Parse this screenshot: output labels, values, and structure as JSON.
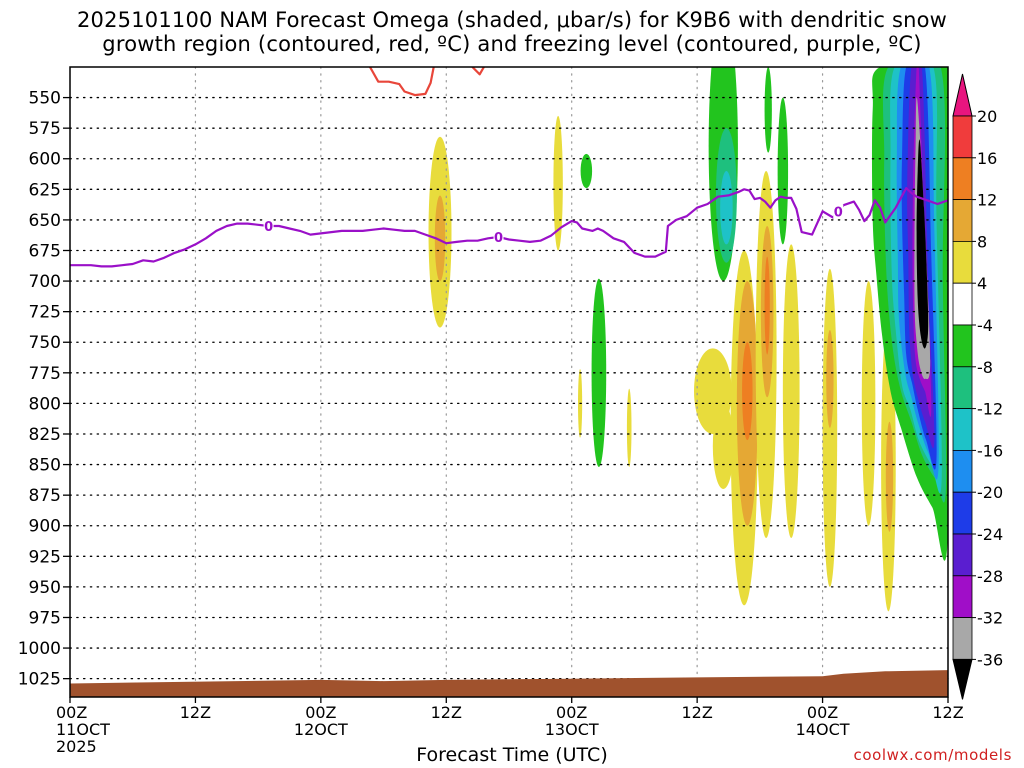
{
  "title_line1": "2025101100 NAM Forecast Omega (shaded, μbar/s) for K9B6 with dendritic snow",
  "title_line2": "growth region (contoured, red, ºC) and freezing level (contoured, purple, ºC)",
  "credit": "coolwx.com/models",
  "colors": {
    "dgz_contour": "#e8463a",
    "freezing_level": "#9a10c8",
    "ground": "#a0522d"
  },
  "chart_data": {
    "type": "heatmap",
    "xlabel": "Forecast Time (UTC)",
    "ylabel": "",
    "xlim": [
      0,
      84
    ],
    "ylim": [
      525,
      1040
    ],
    "y_axis": "pressure_reversed",
    "grid": true,
    "y_ticks": [
      550,
      575,
      600,
      625,
      650,
      675,
      700,
      725,
      750,
      775,
      800,
      825,
      850,
      875,
      900,
      925,
      950,
      975,
      1000,
      1025
    ],
    "x_ticks": [
      {
        "x": 0,
        "line1": "00Z",
        "line2": "11OCT",
        "line3": "2025"
      },
      {
        "x": 12,
        "line1": "12Z",
        "line2": "",
        "line3": ""
      },
      {
        "x": 24,
        "line1": "00Z",
        "line2": "12OCT",
        "line3": ""
      },
      {
        "x": 36,
        "line1": "12Z",
        "line2": "",
        "line3": ""
      },
      {
        "x": 48,
        "line1": "00Z",
        "line2": "13OCT",
        "line3": ""
      },
      {
        "x": 60,
        "line1": "12Z",
        "line2": "",
        "line3": ""
      },
      {
        "x": 72,
        "line1": "00Z",
        "line2": "14OCT",
        "line3": ""
      },
      {
        "x": 84,
        "line1": "12Z",
        "line2": "",
        "line3": ""
      }
    ],
    "colorbar": {
      "labels": [
        "20",
        "16",
        "12",
        "8",
        "4",
        "-4",
        "-8",
        "-12",
        "-16",
        "-20",
        "-24",
        "-28",
        "-32",
        "-36"
      ],
      "bins": [
        {
          "range": [
            20,
            99
          ],
          "color": "#e8157f"
        },
        {
          "range": [
            16,
            20
          ],
          "color": "#f03c3c"
        },
        {
          "range": [
            12,
            16
          ],
          "color": "#ee7f22"
        },
        {
          "range": [
            8,
            12
          ],
          "color": "#e5a834"
        },
        {
          "range": [
            4,
            8
          ],
          "color": "#e8dc3c"
        },
        {
          "range": [
            -4,
            4
          ],
          "color": "#ffffff"
        },
        {
          "range": [
            -8,
            -4
          ],
          "color": "#22c41e"
        },
        {
          "range": [
            -12,
            -8
          ],
          "color": "#1ec07e"
        },
        {
          "range": [
            -16,
            -12
          ],
          "color": "#1ec2c8"
        },
        {
          "range": [
            -20,
            -16
          ],
          "color": "#1e8ef0"
        },
        {
          "range": [
            -24,
            -20
          ],
          "color": "#1e3ce8"
        },
        {
          "range": [
            -28,
            -24
          ],
          "color": "#5a1ed0"
        },
        {
          "range": [
            -32,
            -28
          ],
          "color": "#a00ec8"
        },
        {
          "range": [
            -36,
            -32
          ],
          "color": "#a8a8a8"
        },
        {
          "range": [
            -99,
            -36
          ],
          "color": "#000000"
        }
      ]
    },
    "freezing_level": {
      "label": "0",
      "label_hours": [
        19,
        41,
        73.5
      ],
      "points": [
        [
          0,
          687
        ],
        [
          2,
          687
        ],
        [
          3,
          688
        ],
        [
          4,
          688
        ],
        [
          5,
          687
        ],
        [
          6,
          686
        ],
        [
          7,
          683
        ],
        [
          8,
          684
        ],
        [
          9,
          681
        ],
        [
          10,
          677
        ],
        [
          11,
          674
        ],
        [
          12,
          670
        ],
        [
          13,
          665
        ],
        [
          14,
          659
        ],
        [
          15,
          655
        ],
        [
          16,
          653
        ],
        [
          17,
          653
        ],
        [
          18,
          654
        ],
        [
          19,
          655
        ],
        [
          20,
          655
        ],
        [
          21,
          657
        ],
        [
          22,
          659
        ],
        [
          23,
          662
        ],
        [
          24,
          661
        ],
        [
          25,
          660
        ],
        [
          26,
          659
        ],
        [
          27,
          659
        ],
        [
          28,
          659
        ],
        [
          29,
          658
        ],
        [
          30,
          657
        ],
        [
          31,
          658
        ],
        [
          32,
          659
        ],
        [
          33,
          659
        ],
        [
          34,
          662
        ],
        [
          35,
          665
        ],
        [
          36,
          669
        ],
        [
          37,
          668
        ],
        [
          38,
          667
        ],
        [
          39,
          667
        ],
        [
          40,
          665
        ],
        [
          41,
          664
        ],
        [
          42,
          666
        ],
        [
          43,
          667
        ],
        [
          44,
          668
        ],
        [
          45,
          667
        ],
        [
          46,
          663
        ],
        [
          47,
          656
        ],
        [
          48,
          651
        ],
        [
          48.5,
          652
        ],
        [
          49,
          657
        ],
        [
          50,
          659
        ],
        [
          50.5,
          657
        ],
        [
          51,
          659
        ],
        [
          52,
          665
        ],
        [
          53,
          668
        ],
        [
          54,
          677
        ],
        [
          55,
          680
        ],
        [
          56,
          680
        ],
        [
          57,
          676
        ],
        [
          57.2,
          655
        ],
        [
          58,
          650
        ],
        [
          59,
          647
        ],
        [
          60,
          640
        ],
        [
          61,
          637
        ],
        [
          62,
          631
        ],
        [
          63,
          630
        ],
        [
          64,
          627
        ],
        [
          64.5,
          625
        ],
        [
          65,
          626
        ],
        [
          65.5,
          633
        ],
        [
          66,
          632
        ],
        [
          66.5,
          635
        ],
        [
          67,
          640
        ],
        [
          67.5,
          634
        ],
        [
          68,
          631
        ],
        [
          68.5,
          632
        ],
        [
          69,
          632
        ],
        [
          69.5,
          641
        ],
        [
          70,
          660
        ],
        [
          71,
          662
        ],
        [
          72,
          643
        ],
        [
          73,
          648
        ],
        [
          74,
          638
        ],
        [
          75,
          635
        ],
        [
          75.5,
          642
        ],
        [
          76,
          651
        ],
        [
          76.5,
          646
        ],
        [
          77,
          634
        ],
        [
          77.5,
          640
        ],
        [
          78,
          652
        ],
        [
          79,
          640
        ],
        [
          80,
          624
        ],
        [
          80.5,
          628
        ],
        [
          81,
          631
        ],
        [
          82,
          634
        ],
        [
          83,
          637
        ],
        [
          84,
          634
        ]
      ]
    },
    "dgz_contours": [
      {
        "points": [
          [
            28.7,
            525
          ],
          [
            29.5,
            537
          ],
          [
            30.5,
            537
          ],
          [
            31.5,
            539
          ],
          [
            32,
            545
          ],
          [
            33,
            548
          ],
          [
            34,
            547
          ],
          [
            34.5,
            538
          ],
          [
            34.8,
            525
          ]
        ]
      },
      {
        "points": [
          [
            38.5,
            525
          ],
          [
            39.2,
            531
          ],
          [
            39.6,
            525
          ]
        ]
      }
    ],
    "ground_pressure": [
      [
        0,
        1029
      ],
      [
        16,
        1027
      ],
      [
        24,
        1026
      ],
      [
        30,
        1027
      ],
      [
        36,
        1026
      ],
      [
        48,
        1025
      ],
      [
        60,
        1024
      ],
      [
        72,
        1023
      ],
      [
        74,
        1021
      ],
      [
        78,
        1019
      ],
      [
        84,
        1018
      ]
    ],
    "omega_cells": [
      {
        "cx": 35.4,
        "cy": 660,
        "rx": 1.1,
        "ry": 78,
        "v": 5
      },
      {
        "cx": 35.4,
        "cy": 665,
        "rx": 0.5,
        "ry": 35,
        "v": 9
      },
      {
        "cx": 46.7,
        "cy": 620,
        "rx": 0.45,
        "ry": 55,
        "v": 5
      },
      {
        "cx": 49.4,
        "cy": 610,
        "rx": 0.55,
        "ry": 14,
        "v": -6
      },
      {
        "cx": 50.6,
        "cy": 775,
        "rx": 0.7,
        "ry": 77,
        "v": -6
      },
      {
        "cx": 48.8,
        "cy": 800,
        "rx": 0.2,
        "ry": 28,
        "v": 5
      },
      {
        "cx": 53.5,
        "cy": 820,
        "rx": 0.22,
        "ry": 32,
        "v": 5
      },
      {
        "cx": 61.5,
        "cy": 790,
        "rx": 1.8,
        "ry": 35,
        "v": 5
      },
      {
        "cx": 62.5,
        "cy": 835,
        "rx": 1.0,
        "ry": 35,
        "v": 5
      },
      {
        "cx": 64.5,
        "cy": 820,
        "rx": 1.3,
        "ry": 145,
        "v": 5
      },
      {
        "cx": 64.8,
        "cy": 800,
        "rx": 1.0,
        "ry": 100,
        "v": 9
      },
      {
        "cx": 64.8,
        "cy": 790,
        "rx": 0.5,
        "ry": 40,
        "v": 13
      },
      {
        "cx": 66.6,
        "cy": 760,
        "rx": 1.0,
        "ry": 150,
        "v": 5
      },
      {
        "cx": 66.7,
        "cy": 725,
        "rx": 0.6,
        "ry": 70,
        "v": 9
      },
      {
        "cx": 66.7,
        "cy": 720,
        "rx": 0.25,
        "ry": 40,
        "v": 13
      },
      {
        "cx": 69.0,
        "cy": 790,
        "rx": 0.8,
        "ry": 120,
        "v": 5
      },
      {
        "cx": 72.7,
        "cy": 820,
        "rx": 0.7,
        "ry": 130,
        "v": 5
      },
      {
        "cx": 72.7,
        "cy": 780,
        "rx": 0.35,
        "ry": 40,
        "v": 9
      },
      {
        "cx": 76.4,
        "cy": 800,
        "rx": 0.65,
        "ry": 100,
        "v": 5
      },
      {
        "cx": 78.3,
        "cy": 850,
        "rx": 0.7,
        "ry": 120,
        "v": 5
      },
      {
        "cx": 78.4,
        "cy": 860,
        "rx": 0.35,
        "ry": 45,
        "v": 9
      },
      {
        "cx": 62.5,
        "cy": 590,
        "rx": 1.4,
        "ry": 110,
        "v": -6
      },
      {
        "cx": 62.8,
        "cy": 630,
        "rx": 1.0,
        "ry": 55,
        "v": -10
      },
      {
        "cx": 62.8,
        "cy": 640,
        "rx": 0.6,
        "ry": 30,
        "v": -14
      },
      {
        "cx": 68.2,
        "cy": 610,
        "rx": 0.5,
        "ry": 60,
        "v": -6
      },
      {
        "cx": 66.8,
        "cy": 560,
        "rx": 0.35,
        "ry": 35,
        "v": -6
      }
    ],
    "omega_bands": [
      {
        "v": -6,
        "points": [
          [
            77.5,
            525
          ],
          [
            84,
            525
          ],
          [
            84,
            905
          ],
          [
            82.5,
            885
          ],
          [
            81,
            860
          ],
          [
            79.5,
            820
          ],
          [
            78.5,
            790
          ],
          [
            77.7,
            745
          ],
          [
            77.2,
            700
          ],
          [
            76.8,
            650
          ],
          [
            76.8,
            560
          ]
        ]
      },
      {
        "v": -10,
        "points": [
          [
            78.3,
            525
          ],
          [
            83.3,
            525
          ],
          [
            83.5,
            700
          ],
          [
            83.8,
            870
          ],
          [
            82.8,
            862
          ],
          [
            81.5,
            842
          ],
          [
            80.5,
            815
          ],
          [
            79.5,
            790
          ],
          [
            78.8,
            760
          ],
          [
            78.3,
            720
          ],
          [
            78.0,
            670
          ],
          [
            77.9,
            600
          ]
        ]
      },
      {
        "v": -14,
        "points": [
          [
            78.9,
            525
          ],
          [
            82.6,
            525
          ],
          [
            82.9,
            650
          ],
          [
            83.4,
            860
          ],
          [
            82.4,
            850
          ],
          [
            81.2,
            830
          ],
          [
            80.4,
            805
          ],
          [
            79.6,
            785
          ],
          [
            79.0,
            740
          ],
          [
            78.6,
            690
          ],
          [
            78.5,
            600
          ]
        ]
      },
      {
        "v": -18,
        "points": [
          [
            79.5,
            525
          ],
          [
            82.2,
            525
          ],
          [
            82.7,
            660
          ],
          [
            83.1,
            850
          ],
          [
            82.1,
            840
          ],
          [
            81.1,
            815
          ],
          [
            80.5,
            795
          ],
          [
            79.9,
            775
          ],
          [
            79.3,
            730
          ],
          [
            79.2,
            680
          ],
          [
            79.1,
            600
          ]
        ]
      },
      {
        "v": -22,
        "points": [
          [
            80.0,
            525
          ],
          [
            81.8,
            525
          ],
          [
            82.4,
            680
          ],
          [
            82.9,
            845
          ],
          [
            81.9,
            830
          ],
          [
            81.1,
            805
          ],
          [
            80.6,
            785
          ],
          [
            80.0,
            760
          ],
          [
            79.8,
            710
          ],
          [
            79.6,
            650
          ],
          [
            79.6,
            600
          ]
        ]
      },
      {
        "v": -26,
        "points": [
          [
            80.5,
            525
          ],
          [
            81.5,
            525
          ],
          [
            82.1,
            700
          ],
          [
            82.7,
            830
          ],
          [
            81.8,
            815
          ],
          [
            81.1,
            795
          ],
          [
            80.6,
            775
          ],
          [
            80.3,
            740
          ],
          [
            80.2,
            680
          ],
          [
            80.1,
            620
          ]
        ]
      },
      {
        "v": -30,
        "points": [
          [
            81.0,
            525
          ],
          [
            81.2,
            525
          ],
          [
            81.6,
            620
          ],
          [
            82.4,
            800
          ],
          [
            81.8,
            790
          ],
          [
            81.3,
            780
          ],
          [
            80.9,
            765
          ],
          [
            80.7,
            735
          ],
          [
            80.6,
            680
          ],
          [
            80.7,
            600
          ]
        ]
      },
      {
        "v": -34,
        "points": [
          [
            81.0,
            550
          ],
          [
            81.3,
            580
          ],
          [
            81.8,
            660
          ],
          [
            82.3,
            765
          ],
          [
            81.8,
            780
          ],
          [
            81.3,
            770
          ],
          [
            81.0,
            750
          ],
          [
            80.8,
            720
          ],
          [
            80.8,
            650
          ],
          [
            80.9,
            590
          ]
        ]
      },
      {
        "v": -40,
        "points": [
          [
            81.3,
            585
          ],
          [
            81.7,
            640
          ],
          [
            82.0,
            700
          ],
          [
            82.1,
            740
          ],
          [
            81.8,
            755
          ],
          [
            81.4,
            745
          ],
          [
            81.1,
            715
          ],
          [
            81.0,
            660
          ],
          [
            81.1,
            610
          ]
        ]
      }
    ]
  }
}
